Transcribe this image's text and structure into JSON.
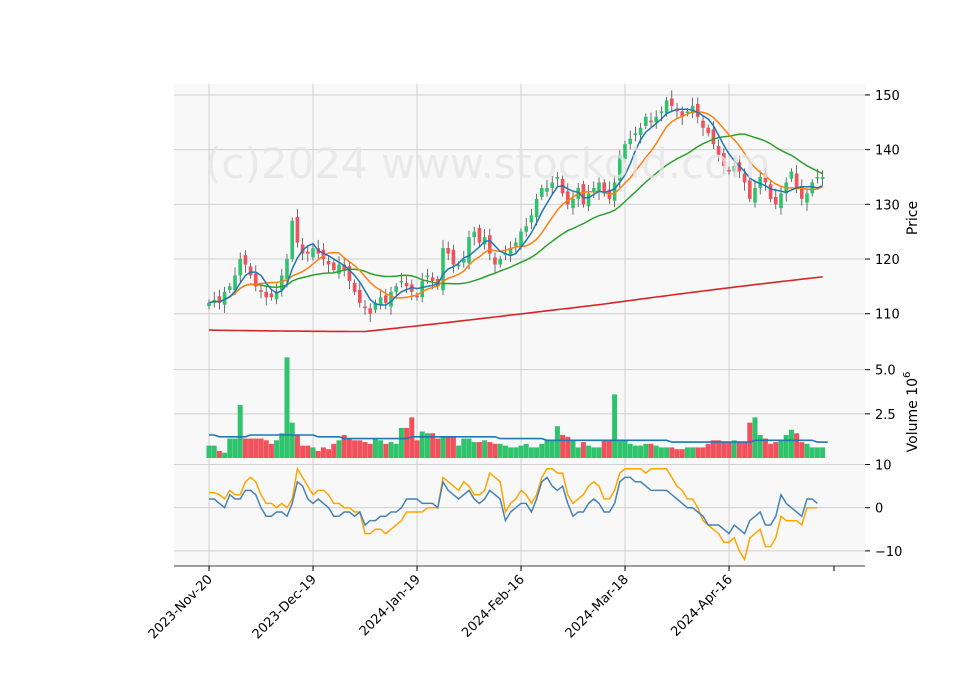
{
  "watermark": "(c)2024 www.stockoid.com",
  "colors": {
    "up": "#2fc36d",
    "down": "#f0515a",
    "ma_blue": "#1f77b4",
    "ma_orange": "#ff7f0e",
    "ma_green": "#2ca02c",
    "ma_red": "#d62728",
    "vol_avg": "#1f77b4",
    "osc_blue": "#4682b4",
    "osc_orange": "#ffa500",
    "panel_bg": "#f8f8f8",
    "grid": "#d0d0d0"
  },
  "chart_data": [
    {
      "type": "candlestick",
      "ylabel": "Price",
      "ylim": [
        103,
        152
      ],
      "yticks": [
        110,
        120,
        130,
        140,
        150
      ],
      "x_tick_labels": [
        "2023-Nov-20",
        "2023-Dec-19",
        "2024-Jan-19",
        "2024-Feb-16",
        "2024-Mar-18",
        "2024-Apr-16"
      ],
      "x_tick_index": [
        0,
        20,
        40,
        60,
        80,
        100
      ],
      "grid": true,
      "close": [
        112,
        112.5,
        112,
        114,
        115,
        117,
        120,
        119,
        117,
        115,
        114,
        113,
        113,
        114,
        117,
        120,
        127,
        123,
        121,
        121,
        122,
        121,
        120,
        119,
        118,
        119,
        118,
        116,
        114,
        112,
        111,
        110,
        112,
        113,
        112,
        114,
        115,
        116,
        115,
        114,
        113,
        116,
        117,
        116,
        115,
        122,
        121,
        119,
        119,
        120,
        124,
        125,
        123,
        124,
        121,
        119,
        120,
        121,
        122,
        123,
        125,
        126,
        128,
        131,
        133,
        133,
        134,
        135,
        132,
        130,
        131,
        133,
        130,
        132,
        133,
        134,
        132,
        131,
        134,
        139,
        141,
        142,
        143,
        144,
        146,
        145,
        146,
        147,
        149,
        148,
        147,
        146,
        147,
        148,
        146,
        144,
        143,
        141,
        139,
        137,
        136,
        137,
        136,
        134,
        131,
        133,
        135,
        134,
        131,
        130,
        132,
        134,
        136,
        133,
        131,
        132,
        134,
        135,
        135
      ]
    },
    {
      "type": "bar",
      "ylabel": "Volume  10^6",
      "ylim": [
        0,
        6.0
      ],
      "yticks": [
        2.5,
        5.0
      ],
      "volume": [
        0.7,
        0.7,
        0.4,
        0.3,
        1.1,
        1.1,
        3.0,
        1.1,
        1.1,
        1.1,
        1.1,
        1.0,
        0.8,
        1.0,
        1.4,
        5.7,
        2.0,
        1.3,
        0.7,
        0.7,
        0.6,
        0.4,
        0.6,
        0.5,
        0.8,
        1.0,
        1.3,
        1.1,
        1.0,
        1.0,
        0.9,
        0.8,
        1.1,
        1.0,
        0.8,
        0.9,
        0.8,
        1.7,
        1.7,
        2.3,
        1.0,
        1.5,
        1.4,
        1.4,
        1.1,
        1.2,
        1.2,
        1.2,
        0.7,
        1.1,
        1.1,
        0.9,
        0.9,
        1.0,
        0.9,
        0.8,
        0.8,
        0.7,
        0.6,
        0.6,
        0.7,
        0.8,
        0.6,
        0.6,
        0.8,
        1.0,
        1.0,
        1.8,
        1.3,
        1.2,
        1.0,
        0.6,
        0.9,
        0.7,
        0.6,
        0.6,
        1.0,
        1.0,
        3.6,
        1.0,
        1.0,
        0.8,
        0.7,
        0.7,
        0.8,
        0.8,
        0.7,
        0.6,
        0.6,
        0.6,
        0.5,
        0.5,
        0.6,
        0.6,
        0.6,
        0.6,
        0.8,
        1.0,
        1.0,
        0.9,
        0.9,
        1.0,
        0.9,
        0.9,
        2.0,
        2.3,
        1.3,
        1.1,
        0.8,
        0.9,
        1.0,
        1.3,
        1.6,
        1.4,
        0.9,
        0.8,
        0.6,
        0.6,
        0.6
      ],
      "avg_line": [
        1.3,
        1.3,
        1.2,
        1.2,
        1.2,
        1.2,
        1.2,
        1.2,
        1.3,
        1.3,
        1.3,
        1.3,
        1.3,
        1.3,
        1.3,
        1.3,
        1.3,
        1.3,
        1.3,
        1.3,
        1.3,
        1.2,
        1.2,
        1.2,
        1.2,
        1.2,
        1.1,
        1.1,
        1.1,
        1.1,
        1.1,
        1.1,
        1.1,
        1.1,
        1.1,
        1.1,
        1.1,
        1.1,
        1.1,
        1.2,
        1.2,
        1.2,
        1.2,
        1.2,
        1.2,
        1.2,
        1.2,
        1.2,
        1.2,
        1.2,
        1.2,
        1.2,
        1.2,
        1.2,
        1.2,
        1.2,
        1.1,
        1.1,
        1.1,
        1.1,
        1.1,
        1.1,
        1.1,
        1.1,
        1.1,
        1.0,
        1.0,
        1.0,
        1.0,
        1.0,
        1.0,
        1.0,
        1.0,
        1.0,
        1.0,
        1.0,
        1.0,
        1.0,
        1.0,
        1.0,
        1.0,
        1.0,
        1.0,
        1.0,
        1.0,
        1.0,
        1.0,
        1.0,
        1.0,
        0.9,
        0.9,
        0.9,
        0.9,
        0.9,
        0.9,
        0.9,
        0.9,
        0.9,
        0.9,
        0.9,
        0.9,
        0.9,
        0.9,
        0.9,
        0.9,
        1.0,
        1.0,
        1.0,
        1.0,
        1.0,
        1.0,
        1.0,
        1.0,
        1.0,
        1.0,
        1.0,
        1.0,
        0.9,
        0.9,
        0.9
      ]
    },
    {
      "type": "line",
      "ylim": [
        -13.5,
        11.5
      ],
      "yticks": [
        -10,
        0,
        10
      ],
      "series": [
        {
          "values": [
            2,
            2,
            1,
            0,
            3,
            2,
            2,
            4,
            4,
            3,
            0,
            -2,
            -2,
            -1,
            -1,
            -2,
            1,
            6,
            5,
            2,
            1,
            2,
            1,
            0,
            -2,
            -2,
            -1,
            -1,
            -2,
            -1,
            -4,
            -3,
            -3,
            -2,
            -2,
            -1,
            -1,
            0,
            2,
            2,
            2,
            1,
            1,
            1,
            0,
            6,
            4,
            3,
            2,
            3,
            4,
            2,
            1,
            2,
            4,
            3,
            2,
            -3,
            -1,
            0,
            1,
            1,
            -1,
            2,
            6,
            7,
            5,
            4,
            5,
            1,
            -2,
            -1,
            -1,
            1,
            2,
            1,
            -1,
            -1,
            1,
            6,
            7,
            7,
            6,
            6,
            5,
            4,
            4,
            4,
            4,
            3,
            2,
            1,
            0,
            0,
            -1,
            -2,
            -4,
            -4,
            -4,
            -5,
            -6,
            -4,
            -5,
            -6,
            -3,
            -2,
            -1,
            -4,
            -4,
            -2,
            3,
            1,
            0,
            -1,
            -2,
            2,
            2,
            1
          ]
        },
        {
          "values": [
            3.5,
            3.5,
            3.0,
            2.0,
            4.0,
            3.0,
            3.0,
            6.0,
            7.0,
            6.0,
            3.0,
            1.0,
            1.0,
            0.0,
            1.0,
            0.0,
            2.0,
            9.0,
            7.0,
            5.0,
            3.0,
            4.0,
            4.0,
            3.0,
            1.0,
            1.0,
            0.0,
            0.0,
            -1.0,
            -1.0,
            -6.0,
            -6.0,
            -5.0,
            -5.0,
            -6.0,
            -5.0,
            -4.0,
            -3.0,
            -1.0,
            -1.0,
            -1.0,
            -1.0,
            0.0,
            0.0,
            0.0,
            7.0,
            6.0,
            5.0,
            4.0,
            6.0,
            5.0,
            3.0,
            3.0,
            4.0,
            8.0,
            7.0,
            6.0,
            -1.0,
            1.0,
            2.0,
            4.0,
            3.0,
            1.0,
            3.0,
            7.0,
            9.0,
            9.0,
            8.0,
            8.0,
            3.0,
            1.0,
            2.0,
            3.0,
            5.0,
            6.0,
            5.0,
            2.0,
            2.0,
            4.0,
            8.0,
            9.0,
            9.0,
            9.0,
            9.0,
            8.0,
            9.0,
            9.0,
            9.0,
            9.0,
            7.0,
            5.0,
            4.0,
            2.0,
            2.0,
            0.0,
            -3.0,
            -4.0,
            -5.0,
            -6.0,
            -8.0,
            -8.0,
            -7.0,
            -10.0,
            -12.0,
            -7.0,
            -6.0,
            -5.0,
            -9.0,
            -9.0,
            -7.0,
            -2.0,
            -3.0,
            -3.0,
            -3.0,
            -4.0,
            0.0,
            0.0,
            0.0
          ]
        }
      ]
    }
  ]
}
